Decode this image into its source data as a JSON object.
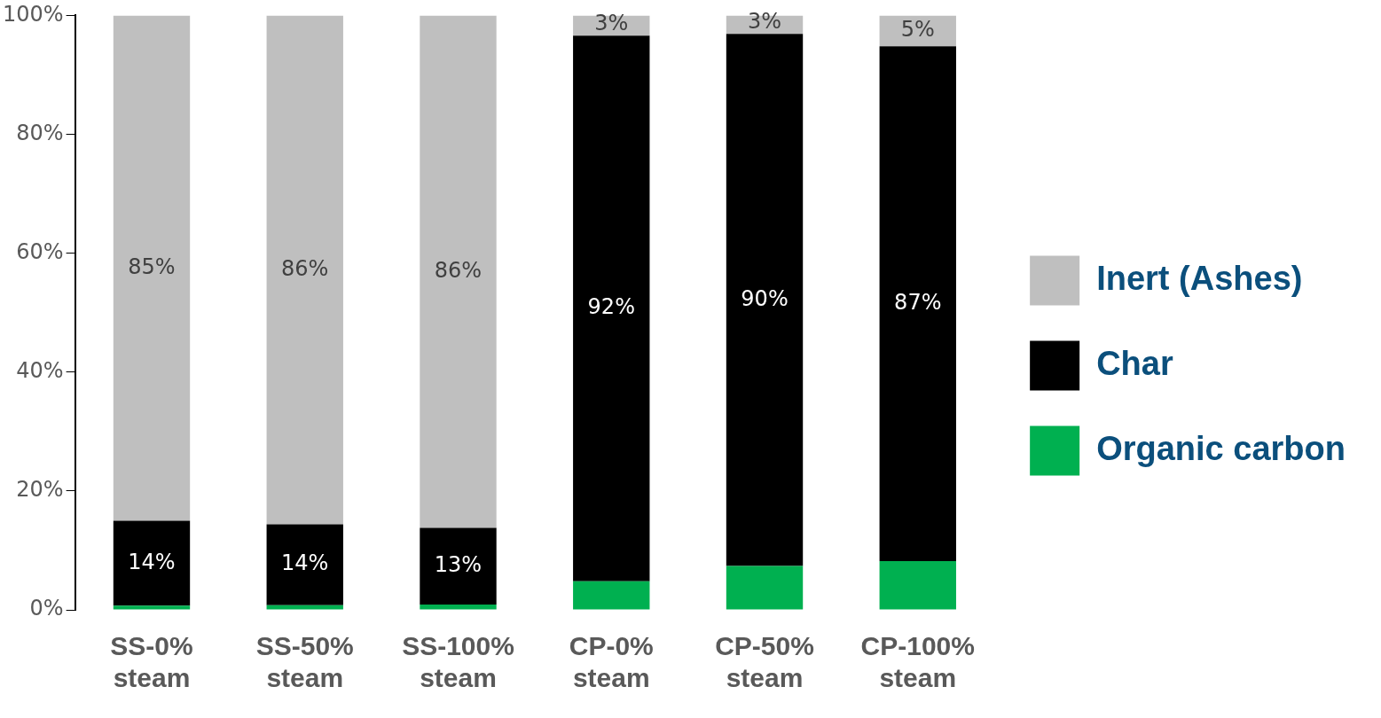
{
  "chart_data": {
    "type": "bar",
    "stacked": true,
    "categories": [
      "SS-0% steam",
      "SS-50% steam",
      "SS-100% steam",
      "CP-0% steam",
      "CP-50% steam",
      "CP-100% steam"
    ],
    "series": [
      {
        "name": "Organic carbon",
        "color": "#00b050",
        "values": [
          0.7,
          0.8,
          0.9,
          4.8,
          7.4,
          8.2
        ]
      },
      {
        "name": "Char",
        "color": "#000000",
        "values": [
          14.3,
          13.6,
          12.9,
          91.8,
          89.5,
          86.6
        ],
        "value_labels": [
          "14%",
          "14%",
          "13%",
          "92%",
          "90%",
          "87%"
        ]
      },
      {
        "name": "Inert (Ashes)",
        "color": "#bfbfbf",
        "values": [
          85.0,
          85.6,
          86.2,
          3.4,
          3.1,
          5.2
        ],
        "value_labels": [
          "85%",
          "86%",
          "86%",
          "3%",
          "3%",
          "5%"
        ]
      }
    ],
    "ylim": [
      0,
      100
    ],
    "yticks": [
      {
        "value": 0,
        "label": "0%"
      },
      {
        "value": 20,
        "label": "20%"
      },
      {
        "value": 40,
        "label": "40%"
      },
      {
        "value": 60,
        "label": "60%"
      },
      {
        "value": 80,
        "label": "80%"
      },
      {
        "value": 100,
        "label": "100%"
      }
    ],
    "grid": false,
    "legend": "right"
  }
}
